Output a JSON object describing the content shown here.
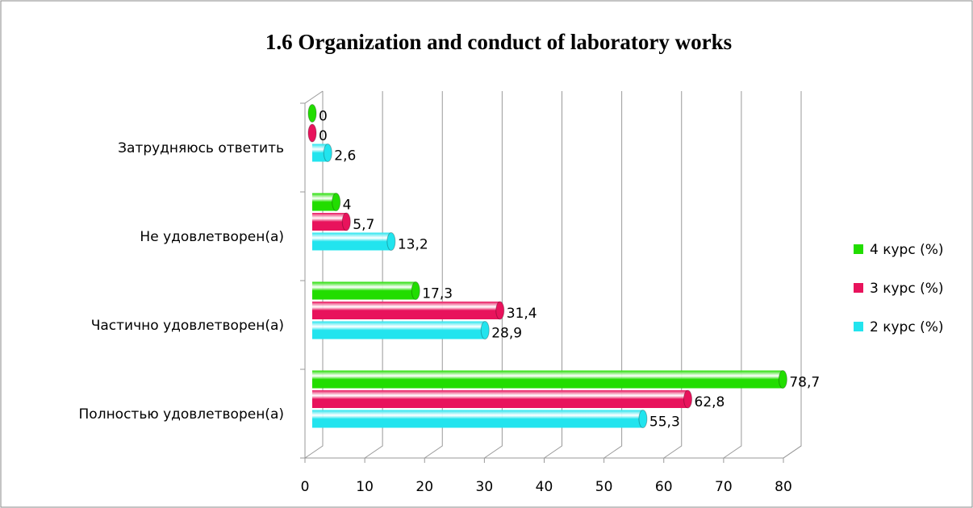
{
  "chart_data": {
    "type": "bar3d-horizontal",
    "title": "1.6 Organization and conduct of laboratory works",
    "categories": [
      "Затрудняюсь ответить",
      "Не удовлетворен(а)",
      "Частично удовлетворен(а)",
      "Полностью удовлетворен(а)"
    ],
    "series": [
      {
        "name": "4 курс (%)",
        "color": "#22dd00",
        "values": [
          0,
          4,
          17.3,
          78.7
        ],
        "value_labels": [
          "0",
          "4",
          "17,3",
          "78,7"
        ]
      },
      {
        "name": "3 курс (%)",
        "color": "#e8135c",
        "values": [
          0,
          5.7,
          31.4,
          62.8
        ],
        "value_labels": [
          "0",
          "5,7",
          "31,4",
          "62,8"
        ]
      },
      {
        "name": "2 курс (%)",
        "color": "#22e4ee",
        "values": [
          2.6,
          13.2,
          28.9,
          55.3
        ],
        "value_labels": [
          "2,6",
          "13,2",
          "28,9",
          "55,3"
        ]
      }
    ],
    "xlim": [
      0,
      80
    ],
    "xticks": [
      0,
      10,
      20,
      30,
      40,
      50,
      60,
      70,
      80
    ],
    "grid": true,
    "legend": "right"
  }
}
